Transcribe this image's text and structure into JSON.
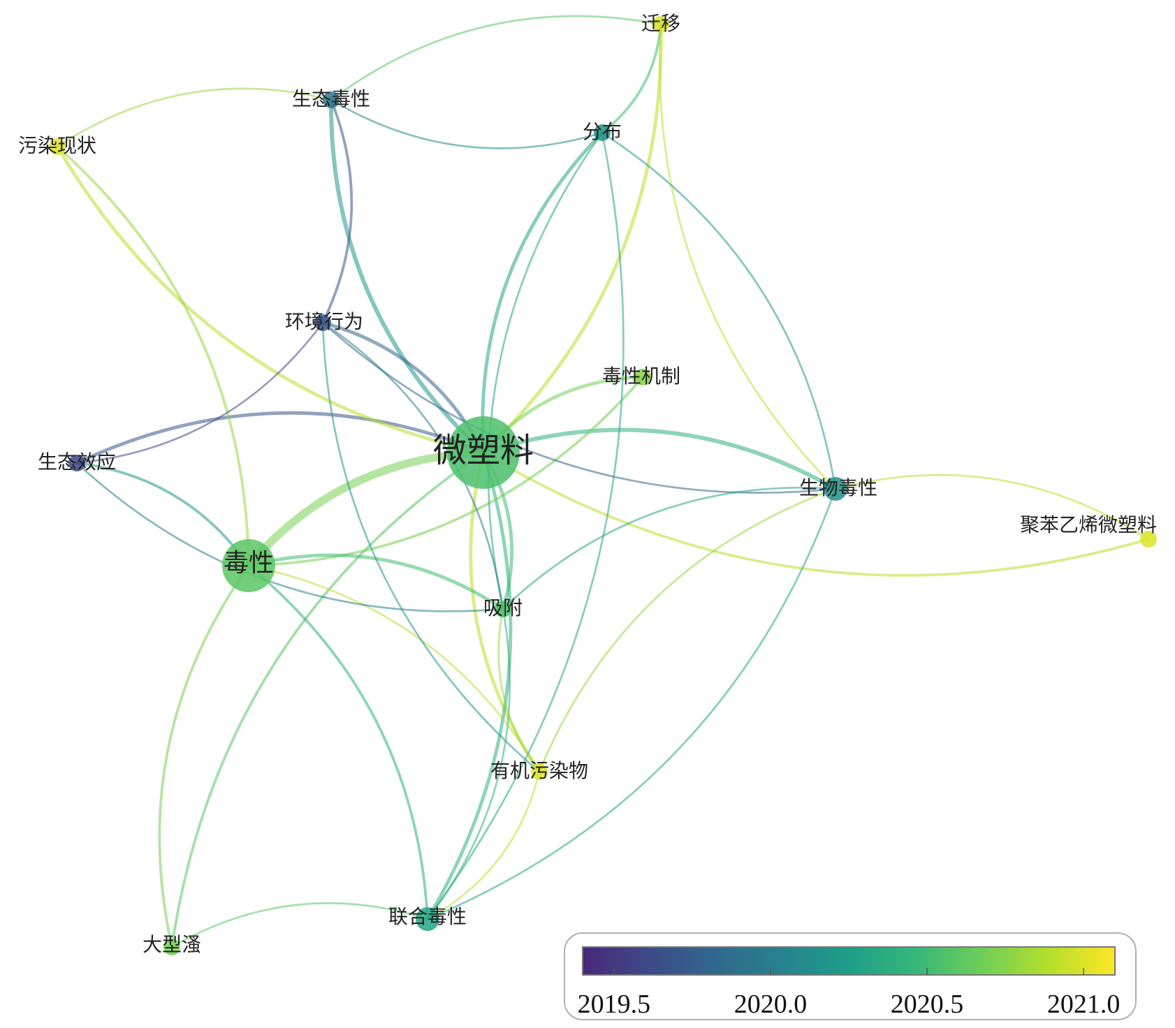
{
  "colors": {
    "viridis": [
      "#482878",
      "#3e4a89",
      "#31688e",
      "#26828e",
      "#1f9e89",
      "#35b779",
      "#6ece58",
      "#b5de2b",
      "#fde725"
    ],
    "legend_border": "#999999",
    "text": "#222222"
  },
  "nodes": [
    {
      "id": "weisuliao",
      "label": "微塑料",
      "year": 2020.55,
      "size": "huge"
    },
    {
      "id": "duxing",
      "label": "毒性",
      "year": 2020.6,
      "size": "large"
    },
    {
      "id": "shengtaiduxing",
      "label": "生态毒性",
      "year": 2019.95,
      "size": "small"
    },
    {
      "id": "qianyi",
      "label": "迁移",
      "year": 2021.0,
      "size": "small"
    },
    {
      "id": "wuranxianzhuang",
      "label": "污染现状",
      "year": 2021.0,
      "size": "small"
    },
    {
      "id": "fenbu",
      "label": "分布",
      "year": 2020.15,
      "size": "small"
    },
    {
      "id": "huanjingxingwei",
      "label": "环境行为",
      "year": 2019.7,
      "size": "small"
    },
    {
      "id": "duxingjizhi",
      "label": "毒性机制",
      "year": 2020.75,
      "size": "small"
    },
    {
      "id": "shengtaixiaoying",
      "label": "生态效应",
      "year": 2019.6,
      "size": "small"
    },
    {
      "id": "shengwuduxing",
      "label": "生物毒性",
      "year": 2020.15,
      "size": "medium"
    },
    {
      "id": "jubenyixi",
      "label": "聚苯乙烯微塑料",
      "year": 2021.0,
      "size": "small"
    },
    {
      "id": "xifu",
      "label": "吸附",
      "year": 2020.55,
      "size": "small"
    },
    {
      "id": "youjiwuranwu",
      "label": "有机污染物",
      "year": 2021.0,
      "size": "small"
    },
    {
      "id": "lianheduxing",
      "label": "联合毒性",
      "year": 2020.3,
      "size": "medium"
    },
    {
      "id": "daxingzao",
      "label": "大型溞",
      "year": 2020.7,
      "size": "small"
    }
  ],
  "edges": [
    {
      "s": "weisuliao",
      "t": "duxing",
      "year": 2020.7,
      "w": 9
    },
    {
      "s": "weisuliao",
      "t": "shengtaiduxing",
      "year": 2020.2,
      "w": 4
    },
    {
      "s": "weisuliao",
      "t": "qianyi",
      "year": 2020.9,
      "w": 3
    },
    {
      "s": "weisuliao",
      "t": "fenbu",
      "year": 2020.3,
      "w": 3
    },
    {
      "s": "weisuliao",
      "t": "huanjingxingwei",
      "year": 2019.8,
      "w": 3
    },
    {
      "s": "weisuliao",
      "t": "duxingjizhi",
      "year": 2020.7,
      "w": 3
    },
    {
      "s": "weisuliao",
      "t": "shengtaixiaoying",
      "year": 2019.7,
      "w": 3
    },
    {
      "s": "weisuliao",
      "t": "shengwuduxing",
      "year": 2020.4,
      "w": 4
    },
    {
      "s": "weisuliao",
      "t": "jubenyixi",
      "year": 2020.9,
      "w": 2
    },
    {
      "s": "weisuliao",
      "t": "xifu",
      "year": 2020.5,
      "w": 3
    },
    {
      "s": "weisuliao",
      "t": "youjiwuranwu",
      "year": 2020.9,
      "w": 3
    },
    {
      "s": "weisuliao",
      "t": "lianheduxing",
      "year": 2020.4,
      "w": 3
    },
    {
      "s": "weisuliao",
      "t": "daxingzao",
      "year": 2020.6,
      "w": 2
    },
    {
      "s": "weisuliao",
      "t": "wuranxianzhuang",
      "year": 2020.9,
      "w": 3
    },
    {
      "s": "duxing",
      "t": "duxingjizhi",
      "year": 2020.7,
      "w": 2
    },
    {
      "s": "duxing",
      "t": "xifu",
      "year": 2020.5,
      "w": 3
    },
    {
      "s": "duxing",
      "t": "shengtaixiaoying",
      "year": 2020.2,
      "w": 2
    },
    {
      "s": "duxing",
      "t": "lianheduxing",
      "year": 2020.4,
      "w": 2
    },
    {
      "s": "duxing",
      "t": "daxingzao",
      "year": 2020.7,
      "w": 2
    },
    {
      "s": "duxing",
      "t": "youjiwuranwu",
      "year": 2020.9,
      "w": 1
    },
    {
      "s": "duxing",
      "t": "wuranxianzhuang",
      "year": 2020.8,
      "w": 2
    },
    {
      "s": "shengtaiduxing",
      "t": "huanjingxingwei",
      "year": 2019.7,
      "w": 2
    },
    {
      "s": "shengtaiduxing",
      "t": "fenbu",
      "year": 2020.1,
      "w": 1
    },
    {
      "s": "shengtaiduxing",
      "t": "qianyi",
      "year": 2020.6,
      "w": 1
    },
    {
      "s": "shengtaiduxing",
      "t": "wuranxianzhuang",
      "year": 2020.8,
      "w": 1
    },
    {
      "s": "qianyi",
      "t": "fenbu",
      "year": 2020.5,
      "w": 2
    },
    {
      "s": "qianyi",
      "t": "shengwuduxing",
      "year": 2020.9,
      "w": 1
    },
    {
      "s": "fenbu",
      "t": "shengwuduxing",
      "year": 2020.2,
      "w": 1
    },
    {
      "s": "fenbu",
      "t": "xifu",
      "year": 2020.3,
      "w": 1
    },
    {
      "s": "fenbu",
      "t": "lianheduxing",
      "year": 2020.3,
      "w": 1
    },
    {
      "s": "huanjingxingwei",
      "t": "shengwuduxing",
      "year": 2019.8,
      "w": 1
    },
    {
      "s": "huanjingxingwei",
      "t": "shengtaixiaoying",
      "year": 2019.6,
      "w": 1
    },
    {
      "s": "huanjingxingwei",
      "t": "youjiwuranwu",
      "year": 2020.2,
      "w": 1
    },
    {
      "s": "huanjingxingwei",
      "t": "xifu",
      "year": 2020.0,
      "w": 1
    },
    {
      "s": "shengtaixiaoying",
      "t": "xifu",
      "year": 2020.0,
      "w": 1
    },
    {
      "s": "shengwuduxing",
      "t": "jubenyixi",
      "year": 2020.9,
      "w": 1
    },
    {
      "s": "shengwuduxing",
      "t": "youjiwuranwu",
      "year": 2020.8,
      "w": 1
    },
    {
      "s": "shengwuduxing",
      "t": "lianheduxing",
      "year": 2020.3,
      "w": 1
    },
    {
      "s": "shengwuduxing",
      "t": "xifu",
      "year": 2020.3,
      "w": 1
    },
    {
      "s": "xifu",
      "t": "lianheduxing",
      "year": 2020.4,
      "w": 1
    },
    {
      "s": "xifu",
      "t": "youjiwuranwu",
      "year": 2020.8,
      "w": 1
    },
    {
      "s": "youjiwuranwu",
      "t": "lianheduxing",
      "year": 2020.9,
      "w": 1
    },
    {
      "s": "lianheduxing",
      "t": "daxingzao",
      "year": 2020.6,
      "w": 1
    }
  ],
  "legend": {
    "min": 2019.4,
    "max": 2021.1,
    "ticks": [
      {
        "value": 2019.5,
        "label": "2019.5"
      },
      {
        "value": 2020.0,
        "label": "2020.0"
      },
      {
        "value": 2020.5,
        "label": "2020.5"
      },
      {
        "value": 2021.0,
        "label": "2021.0"
      }
    ]
  }
}
